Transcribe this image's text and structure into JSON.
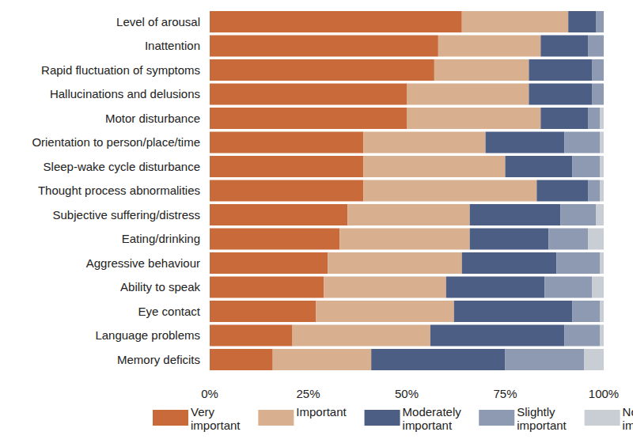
{
  "chart_data": {
    "type": "bar",
    "orientation": "horizontal",
    "stacked": true,
    "grid": false,
    "legend": "bottom",
    "categories": [
      "Level of arousal",
      "Inattention",
      "Rapid fluctuation of symptoms",
      "Hallucinations and delusions",
      "Motor disturbance",
      "Orientation to person/place/time",
      "Sleep-wake cycle disturbance",
      "Thought process abnormalities",
      "Subjective suffering/distress",
      "Eating/drinking",
      "Aggressive behaviour",
      "Ability to speak",
      "Eye contact",
      "Language problems",
      "Memory deficits"
    ],
    "xlim": [
      0,
      100
    ],
    "xticks": [
      {
        "value": 0,
        "label": "0%"
      },
      {
        "value": 25,
        "label": "25%"
      },
      {
        "value": 50,
        "label": "50%"
      },
      {
        "value": 75,
        "label": "75%"
      },
      {
        "value": 100,
        "label": "100%"
      }
    ],
    "series": [
      {
        "name": "Very important",
        "color": "#c96a3a",
        "values": [
          64,
          58,
          57,
          50,
          50,
          39,
          39,
          39,
          35,
          33,
          30,
          29,
          27,
          21,
          16
        ]
      },
      {
        "name": "Important",
        "color": "#d9b08f",
        "values": [
          27,
          26,
          24,
          31,
          34,
          31,
          36,
          44,
          31,
          33,
          34,
          31,
          35,
          35,
          25
        ]
      },
      {
        "name": "Moderately important",
        "color": "#4d5e85",
        "values": [
          7,
          12,
          16,
          16,
          12,
          20,
          17,
          13,
          23,
          20,
          24,
          25,
          30,
          34,
          34
        ]
      },
      {
        "name": "Slightly important",
        "color": "#8d9ab1",
        "values": [
          2,
          4,
          3,
          3,
          3,
          9,
          7,
          3,
          9,
          10,
          11,
          12,
          7,
          9,
          20
        ]
      },
      {
        "name": "Not at all important",
        "color": "#c9cdd4",
        "values": [
          0,
          0,
          0,
          0,
          1,
          1,
          1,
          1,
          2,
          4,
          1,
          3,
          1,
          1,
          5
        ]
      }
    ]
  }
}
